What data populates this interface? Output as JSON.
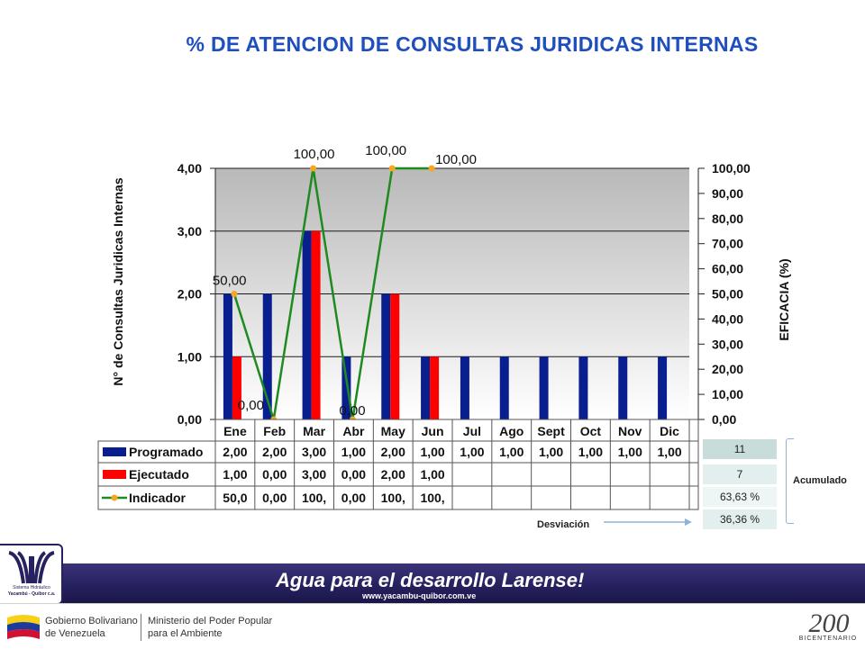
{
  "page": {
    "title": "% DE ATENCION DE CONSULTAS JURIDICAS INTERNAS"
  },
  "chart_data": {
    "type": "bar",
    "categories": [
      "Ene",
      "Feb",
      "Mar",
      "Abr",
      "May",
      "Jun",
      "Jul",
      "Ago",
      "Sept",
      "Oct",
      "Nov",
      "Dic"
    ],
    "series": [
      {
        "name": "Programado",
        "type": "bar",
        "axis": "left",
        "color": "#0a1f8f",
        "values": [
          2,
          2,
          3,
          1,
          2,
          1,
          1,
          1,
          1,
          1,
          1,
          1
        ]
      },
      {
        "name": "Ejecutado",
        "type": "bar",
        "axis": "left",
        "color": "#ff0000",
        "values": [
          1,
          0,
          3,
          0,
          2,
          1,
          null,
          null,
          null,
          null,
          null,
          null
        ]
      },
      {
        "name": "Indicador",
        "type": "line",
        "axis": "right",
        "color": "#1f8a1f",
        "marker_color": "#f5a623",
        "values": [
          50,
          0,
          100,
          0,
          100,
          100,
          null,
          null,
          null,
          null,
          null,
          null
        ]
      }
    ],
    "ylabel": "N° de Consultas Juridicas Internas",
    "y2label": "EFICACIA (%)",
    "ylim": [
      0,
      4
    ],
    "y2lim": [
      0,
      100
    ],
    "yticks": [
      "0,00",
      "1,00",
      "2,00",
      "3,00",
      "4,00"
    ],
    "y2ticks": [
      "0,00",
      "10,00",
      "20,00",
      "30,00",
      "40,00",
      "50,00",
      "60,00",
      "70,00",
      "80,00",
      "90,00",
      "100,00"
    ],
    "line_labels": [
      "50,00",
      "0,00",
      "100,00",
      "0,00",
      "100,00",
      "100,00"
    ],
    "grid": true,
    "legend": "data-table",
    "table_rows": [
      {
        "label": "Programado",
        "cells": [
          "2,00",
          "2,00",
          "3,00",
          "1,00",
          "2,00",
          "1,00",
          "1,00",
          "1,00",
          "1,00",
          "1,00",
          "1,00",
          "1,00"
        ]
      },
      {
        "label": "Ejecutado",
        "cells": [
          "1,00",
          "0,00",
          "3,00",
          "0,00",
          "2,00",
          "1,00",
          "",
          "",
          "",
          "",
          "",
          ""
        ]
      },
      {
        "label": "Indicador",
        "cells": [
          "50,0",
          "0,00",
          "100,",
          "0,00",
          "100,",
          "100,",
          "",
          "",
          "",
          "",
          "",
          ""
        ]
      }
    ]
  },
  "summary": {
    "values": [
      "11",
      "7",
      "63,63 %",
      "36,36 %"
    ],
    "colors": [
      "#c8dcdc",
      "#e3eeee",
      "#eef5f5",
      "#e3eeee"
    ],
    "acumulado_label": "Acumulado",
    "desviacion_label": "Desviación"
  },
  "footer": {
    "slogan": "Agua para el desarrollo Larense!",
    "url": "www.yacambu-quibor.com.ve",
    "logo_caption": "Sistema Hidráulico",
    "logo_name": "Yacambú - Quíbor c.a.",
    "gov_line1": "Gobierno Bolivariano",
    "gov_line2": "de Venezuela",
    "min_line1": "Ministerio del Poder Popular",
    "min_line2": "para el Ambiente",
    "bicentenario": "BICENTENARIO"
  }
}
